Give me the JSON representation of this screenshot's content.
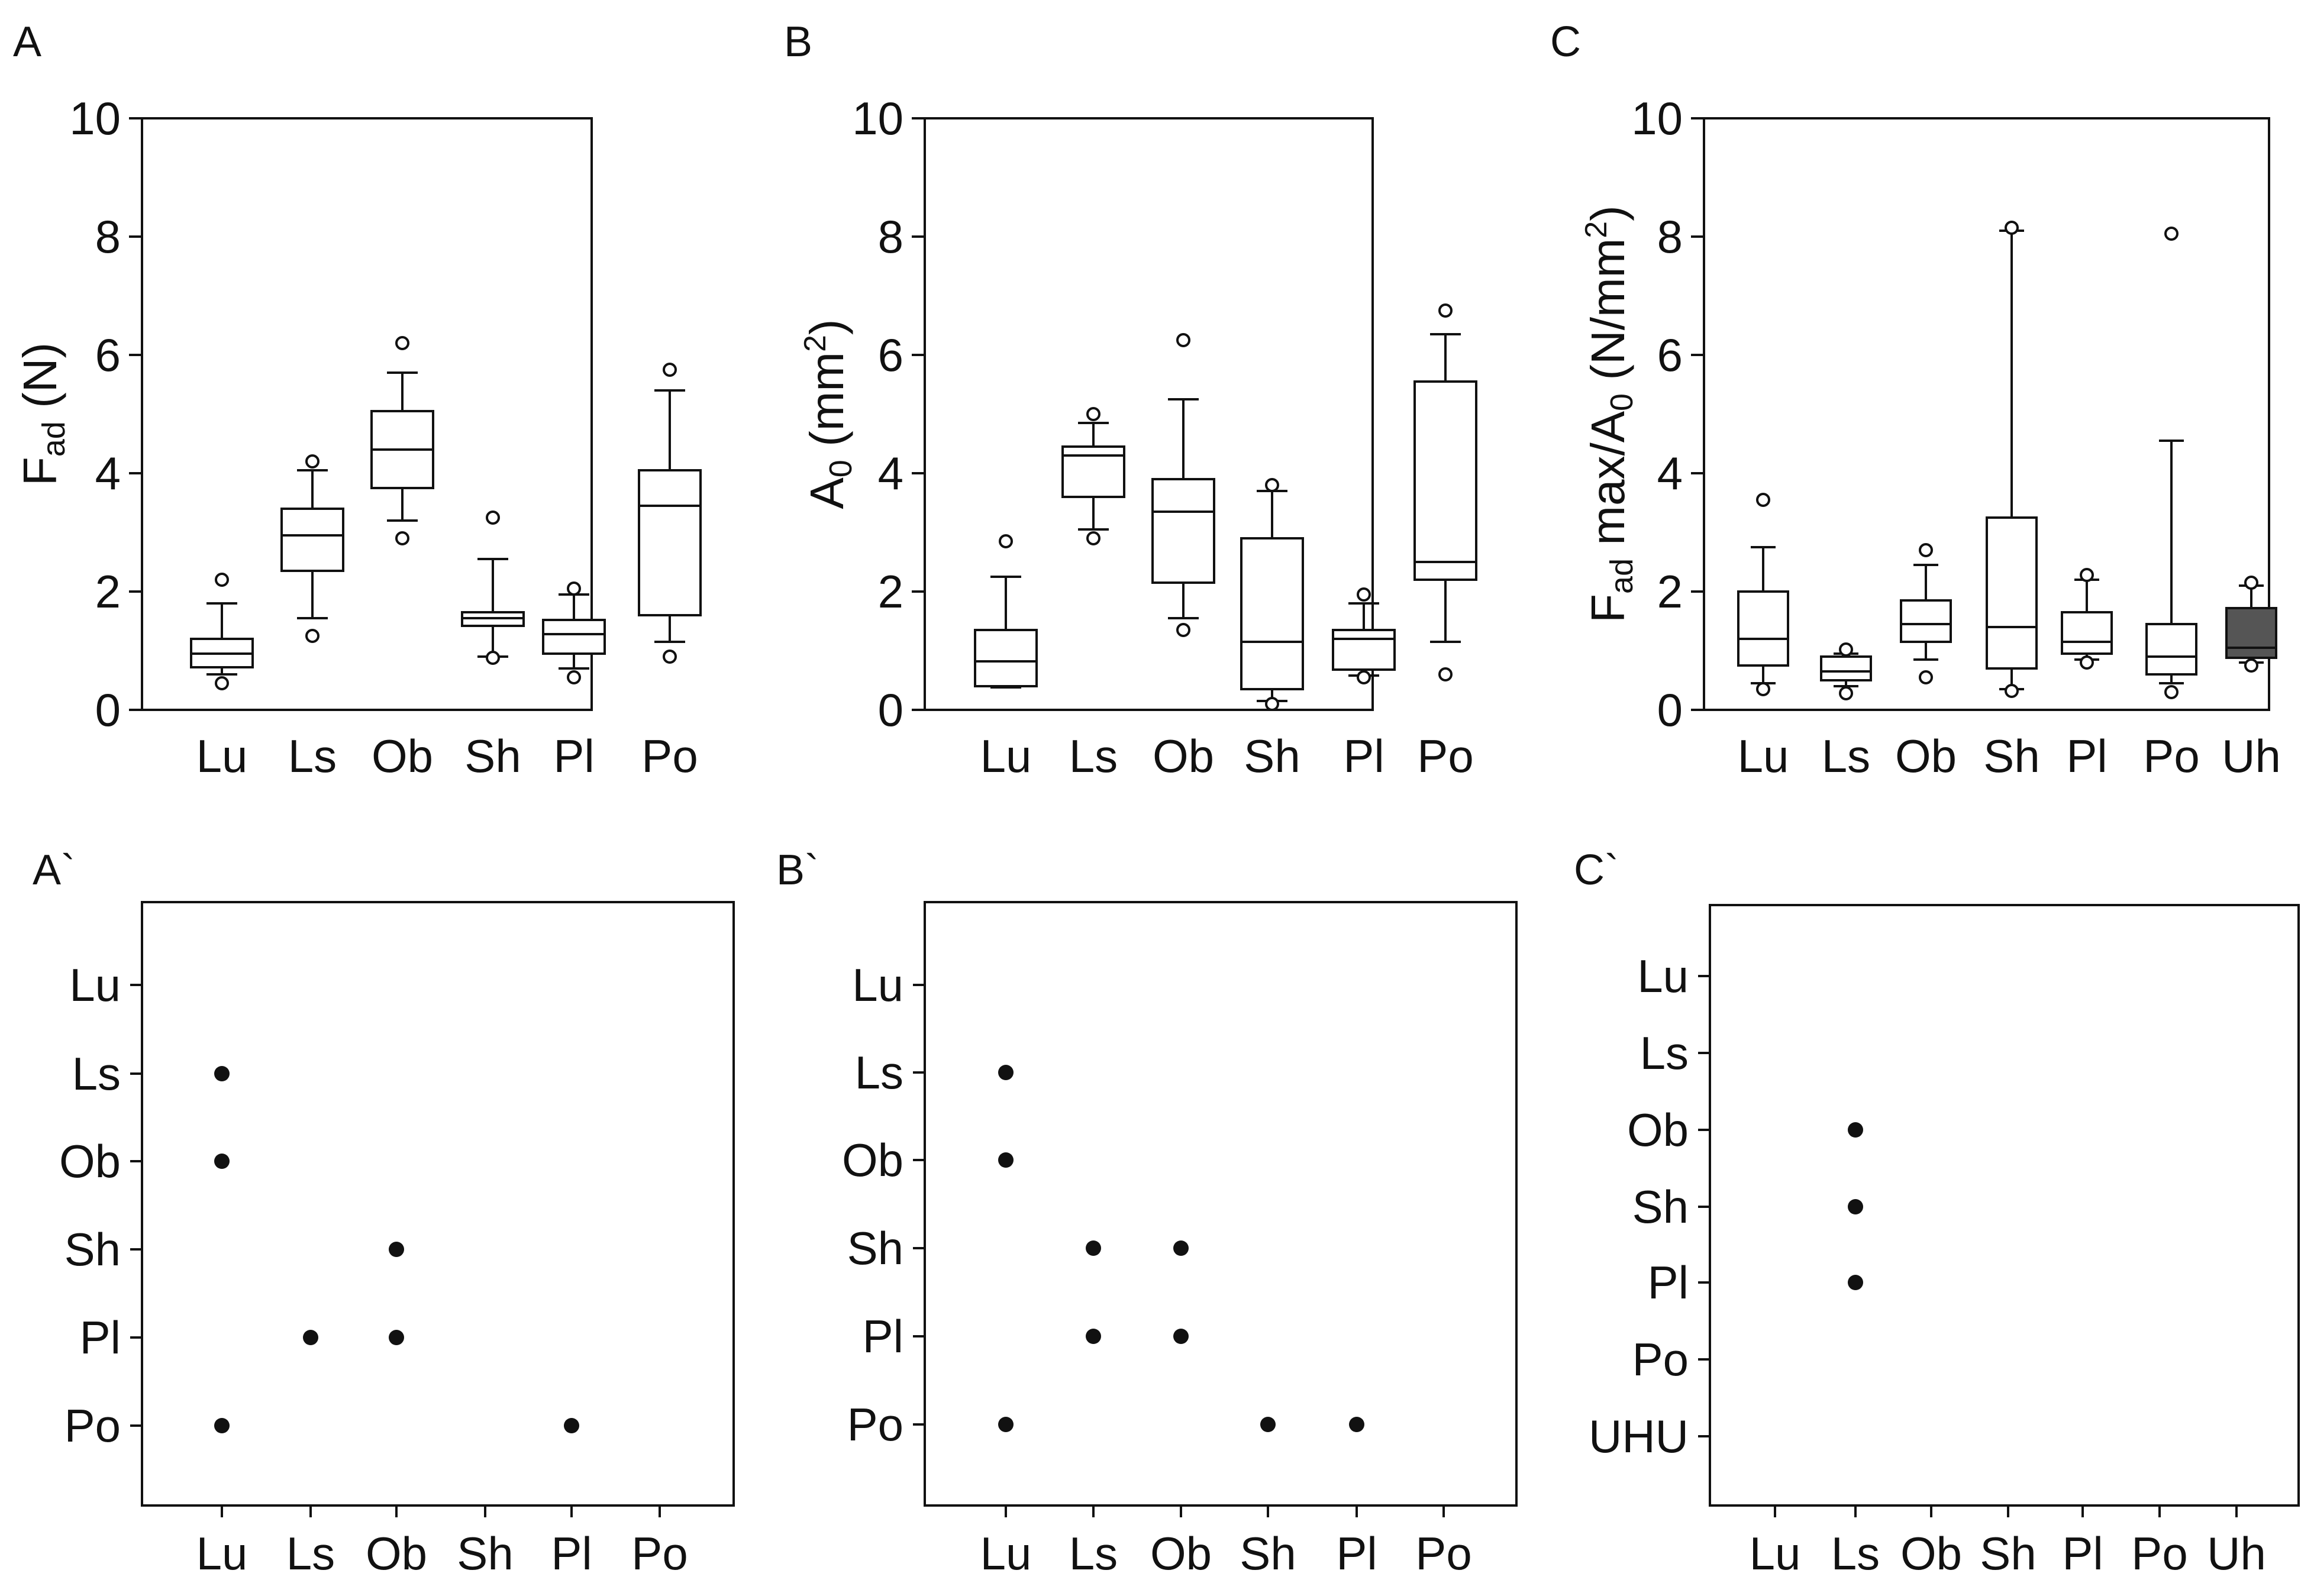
{
  "colors": {
    "ink": "#111111",
    "background": "#ffffff",
    "filled_box": "#555555"
  },
  "chart_data": [
    {
      "id": "A",
      "type": "box",
      "panel_label": "A",
      "ylabel": {
        "main": "F",
        "sub": "ad",
        "rest": "(N)"
      },
      "ylim": [
        0,
        10
      ],
      "yticks": [
        "0",
        "2",
        "4",
        "6",
        "8",
        "10"
      ],
      "categories": [
        "Lu",
        "Ls",
        "Ob",
        "Sh",
        "Pl",
        "Po"
      ],
      "boxes": [
        {
          "cat": "Lu",
          "whislo": 0.6,
          "q1": 0.72,
          "med": 0.95,
          "q3": 1.2,
          "whishi": 1.8,
          "fliers": [
            0.45,
            2.2
          ]
        },
        {
          "cat": "Ls",
          "whislo": 1.55,
          "q1": 2.35,
          "med": 2.95,
          "q3": 3.4,
          "whishi": 4.05,
          "fliers": [
            1.25,
            4.2
          ]
        },
        {
          "cat": "Ob",
          "whislo": 3.2,
          "q1": 3.75,
          "med": 4.4,
          "q3": 5.05,
          "whishi": 5.7,
          "fliers": [
            2.9,
            6.2
          ]
        },
        {
          "cat": "Sh",
          "whislo": 0.9,
          "q1": 1.42,
          "med": 1.55,
          "q3": 1.65,
          "whishi": 2.55,
          "fliers": [
            0.88,
            3.25
          ]
        },
        {
          "cat": "Pl",
          "whislo": 0.7,
          "q1": 0.95,
          "med": 1.28,
          "q3": 1.52,
          "whishi": 1.95,
          "fliers": [
            0.55,
            2.05
          ]
        },
        {
          "cat": "Po",
          "whislo": 1.15,
          "q1": 1.6,
          "med": 3.45,
          "q3": 4.05,
          "whishi": 5.4,
          "fliers": [
            0.9,
            5.75
          ]
        }
      ]
    },
    {
      "id": "B",
      "type": "box",
      "panel_label": "B",
      "ylabel": {
        "main": "A",
        "sub": "0",
        "rest": "(mm",
        "sup": "2",
        "close": ")"
      },
      "ylim": [
        0,
        10
      ],
      "yticks": [
        "0",
        "2",
        "4",
        "6",
        "8",
        "10"
      ],
      "categories": [
        "Lu",
        "Ls",
        "Ob",
        "Sh",
        "Pl",
        "Po"
      ],
      "boxes": [
        {
          "cat": "Lu",
          "whislo": 0.38,
          "q1": 0.4,
          "med": 0.82,
          "q3": 1.35,
          "whishi": 2.25,
          "fliers": [
            2.85
          ]
        },
        {
          "cat": "Ls",
          "whislo": 3.05,
          "q1": 3.6,
          "med": 4.3,
          "q3": 4.45,
          "whishi": 4.85,
          "fliers": [
            2.9,
            5.0
          ]
        },
        {
          "cat": "Ob",
          "whislo": 1.55,
          "q1": 2.15,
          "med": 3.35,
          "q3": 3.9,
          "whishi": 5.25,
          "fliers": [
            1.35,
            6.25
          ]
        },
        {
          "cat": "Sh",
          "whislo": 0.15,
          "q1": 0.35,
          "med": 1.15,
          "q3": 2.9,
          "whishi": 3.7,
          "fliers": [
            0.1,
            3.8
          ]
        },
        {
          "cat": "Pl",
          "whislo": 0.58,
          "q1": 0.68,
          "med": 1.2,
          "q3": 1.35,
          "whishi": 1.8,
          "fliers": [
            0.55,
            1.95
          ]
        },
        {
          "cat": "Po",
          "whislo": 1.15,
          "q1": 2.2,
          "med": 2.5,
          "q3": 5.55,
          "whishi": 6.35,
          "fliers": [
            0.6,
            6.75
          ]
        }
      ]
    },
    {
      "id": "C",
      "type": "box",
      "panel_label": "C",
      "ylabel": {
        "main": "F",
        "sub": "ad",
        "rest": "max/A",
        "sub2": "0",
        "rest2": "(N/mm",
        "sup": "2",
        "close": ")"
      },
      "ylim": [
        0,
        10
      ],
      "yticks": [
        "0",
        "2",
        "4",
        "6",
        "8",
        "10"
      ],
      "categories": [
        "Lu",
        "Ls",
        "Ob",
        "Sh",
        "Pl",
        "Po",
        "Uh"
      ],
      "boxes": [
        {
          "cat": "Lu",
          "whislo": 0.45,
          "q1": 0.75,
          "med": 1.2,
          "q3": 2.0,
          "whishi": 2.75,
          "fliers": [
            0.35,
            3.55
          ]
        },
        {
          "cat": "Ls",
          "whislo": 0.4,
          "q1": 0.5,
          "med": 0.65,
          "q3": 0.9,
          "whishi": 0.95,
          "fliers": [
            0.28,
            1.02
          ]
        },
        {
          "cat": "Ob",
          "whislo": 0.85,
          "q1": 1.15,
          "med": 1.45,
          "q3": 1.85,
          "whishi": 2.45,
          "fliers": [
            0.55,
            2.7
          ]
        },
        {
          "cat": "Sh",
          "whislo": 0.35,
          "q1": 0.7,
          "med": 1.4,
          "q3": 3.25,
          "whishi": 8.1,
          "fliers": [
            0.32,
            8.15
          ]
        },
        {
          "cat": "Pl",
          "whislo": 0.85,
          "q1": 0.95,
          "med": 1.15,
          "q3": 1.65,
          "whishi": 2.2,
          "fliers": [
            0.8,
            2.28
          ]
        },
        {
          "cat": "Po",
          "whislo": 0.45,
          "q1": 0.6,
          "med": 0.9,
          "q3": 1.45,
          "whishi": 4.55,
          "fliers": [
            0.3,
            8.05
          ]
        },
        {
          "cat": "Uh",
          "whislo": 0.8,
          "q1": 0.88,
          "med": 1.05,
          "q3": 1.72,
          "whishi": 2.1,
          "fliers": [
            0.75,
            2.15
          ],
          "filled": true
        }
      ]
    },
    {
      "id": "A-prime",
      "type": "scatter",
      "panel_label": "A`",
      "x_categories": [
        "Lu",
        "Ls",
        "Ob",
        "Sh",
        "Pl",
        "Po"
      ],
      "y_categories": [
        "Lu",
        "Ls",
        "Ob",
        "Sh",
        "Pl",
        "Po"
      ],
      "points": [
        [
          "Lu",
          "Ls"
        ],
        [
          "Lu",
          "Ob"
        ],
        [
          "Lu",
          "Po"
        ],
        [
          "Ls",
          "Pl"
        ],
        [
          "Ob",
          "Sh"
        ],
        [
          "Ob",
          "Pl"
        ],
        [
          "Pl",
          "Po"
        ]
      ]
    },
    {
      "id": "B-prime",
      "type": "scatter",
      "panel_label": "B`",
      "x_categories": [
        "Lu",
        "Ls",
        "Ob",
        "Sh",
        "Pl",
        "Po"
      ],
      "y_categories": [
        "Lu",
        "Ls",
        "Ob",
        "Sh",
        "Pl",
        "Po"
      ],
      "points": [
        [
          "Lu",
          "Ls"
        ],
        [
          "Lu",
          "Ob"
        ],
        [
          "Lu",
          "Po"
        ],
        [
          "Ls",
          "Sh"
        ],
        [
          "Ls",
          "Pl"
        ],
        [
          "Ob",
          "Sh"
        ],
        [
          "Ob",
          "Pl"
        ],
        [
          "Sh",
          "Po"
        ],
        [
          "Pl",
          "Po"
        ]
      ]
    },
    {
      "id": "C-prime",
      "type": "scatter",
      "panel_label": "C`",
      "x_categories": [
        "Lu",
        "Ls",
        "Ob",
        "Sh",
        "Pl",
        "Po",
        "Uh"
      ],
      "y_categories": [
        "Lu",
        "Ls",
        "Ob",
        "Sh",
        "Pl",
        "Po",
        "UHU"
      ],
      "points": [
        [
          "Ls",
          "Ob"
        ],
        [
          "Ls",
          "Sh"
        ],
        [
          "Ls",
          "Pl"
        ]
      ]
    }
  ]
}
